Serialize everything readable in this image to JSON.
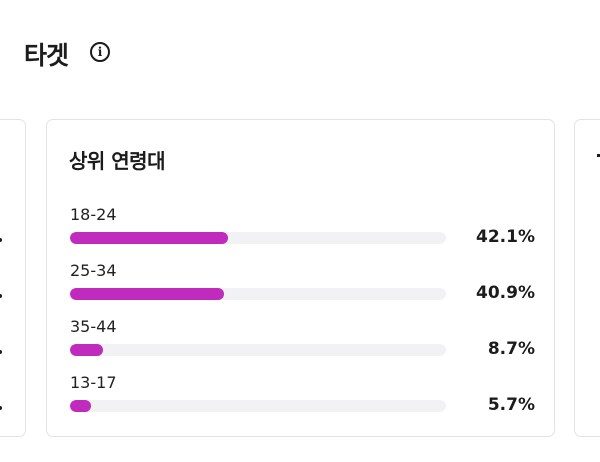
{
  "page": {
    "title": "타겟",
    "info_icon": "info-circle-icon"
  },
  "age_card": {
    "title": "상위 연령대",
    "accent_color": "#c02abd",
    "items": [
      {
        "label": "18-24",
        "value": "42.1%",
        "percent": 42.1
      },
      {
        "label": "25-34",
        "value": "40.9%",
        "percent": 40.9
      },
      {
        "label": "35-44",
        "value": "8.7%",
        "percent": 8.7
      },
      {
        "label": "13-17",
        "value": "5.7%",
        "percent": 5.7
      }
    ]
  }
}
